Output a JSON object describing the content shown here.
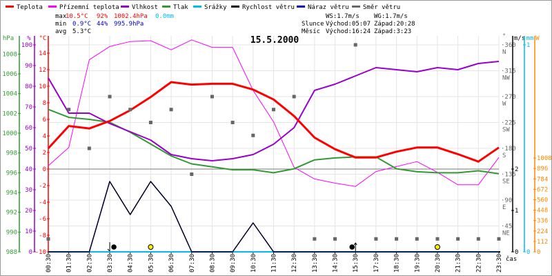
{
  "chart_data": {
    "type": "line",
    "title": "15.5.2000",
    "legend": [
      {
        "name": "Teplota",
        "color": "#ff0000"
      },
      {
        "name": "Přízemní teplota",
        "color": "#ff00ff"
      },
      {
        "name": "Vlhkost",
        "color": "#9900cc"
      },
      {
        "name": "Tlak",
        "color": "#339933"
      },
      {
        "name": "Srážky",
        "color": "#00bbee"
      },
      {
        "name": "Rychlost větru",
        "color": "#000000"
      },
      {
        "name": "Náraz větru",
        "color": "#0000cc"
      },
      {
        "name": "Směr větru",
        "color": "#666666"
      }
    ],
    "legend_placement": "top",
    "x": [
      "00:30",
      "01:30",
      "02:30",
      "03:30",
      "04:30",
      "05:30",
      "06:30",
      "07:30",
      "08:30",
      "09:30",
      "10:30",
      "11:30",
      "12:30",
      "13:30",
      "14:30",
      "15:30",
      "17:30",
      "18:30",
      "19:30",
      "20:30",
      "21:30",
      "22:30",
      "23:30"
    ],
    "xlabel": "čas",
    "series": [
      {
        "name": "Teplota",
        "unit": "°C",
        "values": [
          2.5,
          5.2,
          4.9,
          5.8,
          7.1,
          8.7,
          10.5,
          10.2,
          10.3,
          10.3,
          9.6,
          8.4,
          6.4,
          3.8,
          2.4,
          1.4,
          1.4,
          2.1,
          2.6,
          2.6,
          1.8,
          0.9,
          2.6
        ]
      },
      {
        "name": "Přízemní teplota",
        "unit": "°C",
        "values": [
          0.4,
          2.6,
          13.2,
          14.8,
          15.4,
          15.5,
          14.4,
          15.6,
          14.7,
          14.7,
          9.5,
          5.7,
          0.2,
          -1.2,
          -1.7,
          -2.1,
          -0.3,
          0.3,
          0.9,
          -0.4,
          -1.9,
          -1.9,
          1.4
        ]
      },
      {
        "name": "Vlhkost",
        "unit": "%",
        "values": [
          84,
          67,
          67,
          62,
          58,
          54,
          47,
          45,
          44,
          45,
          47,
          52,
          60,
          78,
          81,
          85,
          89,
          88,
          87,
          89,
          88,
          91,
          92
        ]
      },
      {
        "name": "Tlak",
        "unit": "hPa",
        "values": [
          1002.4,
          1001.6,
          1001.4,
          1001.1,
          1000.1,
          998.9,
          997.7,
          996.9,
          996.6,
          996.3,
          996.3,
          996.0,
          996.4,
          997.3,
          997.5,
          997.6,
          997.6,
          996.4,
          996.1,
          996.0,
          996.0,
          996.2,
          995.9
        ]
      },
      {
        "name": "Srážky",
        "unit": "mm",
        "values": [
          0,
          0,
          0,
          0,
          0,
          0,
          0,
          0,
          0,
          0,
          0,
          0,
          0,
          0,
          0,
          0,
          0,
          0,
          0,
          0,
          0,
          0,
          0
        ]
      },
      {
        "name": "Náraz větru",
        "unit": "m/s",
        "values": [
          0,
          0,
          0,
          1.7,
          0.9,
          1.7,
          1.1,
          0,
          0,
          0,
          0.7,
          0,
          0,
          0,
          0,
          0,
          0,
          0,
          0,
          0,
          0,
          0,
          0
        ]
      },
      {
        "name": "Rychlost větru",
        "unit": "m/s",
        "values": [
          0,
          0,
          0,
          1.7,
          0.9,
          1.7,
          1.1,
          0,
          0,
          0,
          0.7,
          0,
          0,
          0,
          0,
          0,
          0,
          0,
          0,
          0,
          0,
          0,
          0
        ]
      },
      {
        "name": "Směr větru",
        "unit": "°",
        "values": [
          22.5,
          247.5,
          180,
          270,
          247.5,
          225,
          247.5,
          135,
          270,
          225,
          202.5,
          247.5,
          270,
          22.5,
          22.5,
          360,
          22.5,
          22.5,
          22.5,
          22.5,
          22.5,
          22.5,
          22.5
        ]
      }
    ],
    "axes": {
      "hpa": {
        "label": "hPa",
        "range": [
          988,
          1008
        ],
        "ticks": [
          "988",
          "990",
          "992",
          "994",
          "996",
          "998",
          "1000",
          "1002",
          "1004",
          "1006",
          "1008"
        ]
      },
      "pct": {
        "label": "%",
        "range": [
          0,
          100
        ],
        "ticks": [
          "0",
          "10",
          "20",
          "30",
          "40",
          "50",
          "60",
          "70",
          "80",
          "90",
          "100"
        ]
      },
      "temp": {
        "label": "°C",
        "range": [
          -10,
          15
        ],
        "ticks": [
          "-10",
          "-8",
          "-6",
          "-4",
          "-2",
          "0",
          "2",
          "4",
          "6",
          "8",
          "10",
          "12",
          "14"
        ]
      },
      "dir": {
        "label": "°",
        "range": [
          0,
          360
        ],
        "ticks": [
          {
            "v": "45",
            "c": "NE"
          },
          {
            "v": "90",
            "c": "E"
          },
          {
            "v": "135",
            "c": "SE"
          },
          {
            "v": "180",
            "c": "S"
          },
          {
            "v": "225",
            "c": "SW"
          },
          {
            "v": "270",
            "c": "W"
          },
          {
            "v": "315",
            "c": "NW"
          },
          {
            "v": "360",
            "c": "N"
          }
        ]
      },
      "ms": {
        "label": "m/s",
        "range": [
          0,
          5
        ],
        "ticks": [
          "0",
          "1",
          "2"
        ]
      },
      "mm": {
        "label": "mm",
        "range": [
          0,
          1
        ],
        "ticks": [
          "0",
          "1"
        ]
      },
      "w": {
        "label": "W",
        "range": [
          0,
          2240
        ],
        "ticks": [
          "0",
          "112",
          "224",
          "336",
          "448",
          "560",
          "672",
          "784",
          "896",
          "1008"
        ]
      }
    },
    "markers": [
      {
        "type": "moon",
        "x_index": 3,
        "arrow": "down"
      },
      {
        "type": "sun",
        "x_index": 5
      },
      {
        "type": "moon",
        "x_index": 15,
        "arrow": "up"
      },
      {
        "type": "sun",
        "x_index": 19
      }
    ],
    "grid": true
  },
  "stats": {
    "max_label": "max",
    "min_label": "min",
    "avg_label": "avg",
    "max_temp": "10.5°C",
    "max_hum": "92%",
    "max_press": "1002.4hPa",
    "max_rain": "0.0mm",
    "min_temp": "0.9°C",
    "min_hum": "44%",
    "min_press": "995.9hPa",
    "avg_temp": "5.3°C",
    "ws": "WS:1.7m/s",
    "wg": "WG:1.7m/s",
    "sun_label": "Slunce",
    "sun_rise": "Východ:05:07",
    "sun_set": "Západ:20:28",
    "moon_label": "Měsíc",
    "moon_rise": "Východ:16:24",
    "moon_set": "Západ:3:23"
  },
  "colors": {
    "max": "#ff0000",
    "min": "#0000cc",
    "rain": "#00bbee",
    "grid": "#e4e4e4",
    "zero": "#777777",
    "radiation": "#ff8800"
  }
}
